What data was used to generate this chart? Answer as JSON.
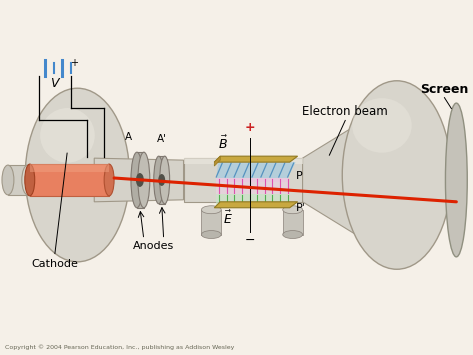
{
  "bg_color": "#f5f0e8",
  "copyright": "Copyright © 2004 Pearson Education, Inc., publishing as Addison Wesley",
  "labels": {
    "cathode": "Cathode",
    "anodes": "Anodes",
    "A": "A",
    "A_prime": "A'",
    "V": "V",
    "B_vec": "$\\vec{B}$",
    "E_vec": "$\\vec{E}$",
    "P": "P",
    "P_prime": "P'",
    "electron_beam": "Electron beam",
    "screen": "Screen"
  },
  "tube_color": "#d0cfc8",
  "cathode_color": "#e8825a",
  "beam_color": "#dd2200",
  "plate_gold": "#c8a840",
  "field_blue": "#7ab0d0",
  "field_magenta": "#dd44aa",
  "field_green": "#44aa44",
  "battery_blue": "#4488cc"
}
